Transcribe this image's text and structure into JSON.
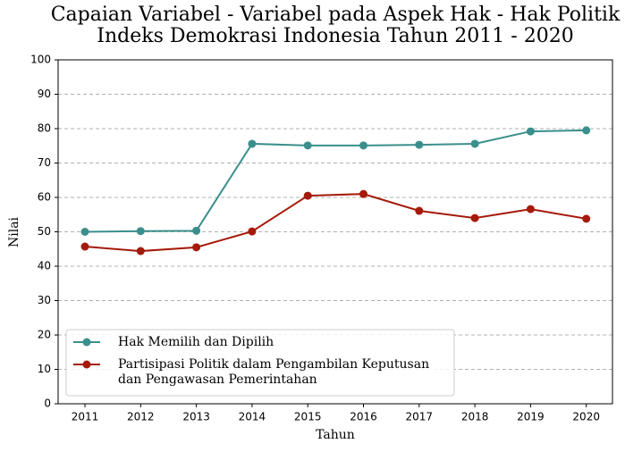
{
  "chart_data": {
    "type": "line",
    "title": "Capaian Variabel - Variabel pada Aspek Hak - Hak Politik\nIndeks Demokrasi Indonesia Tahun 2011 - 2020",
    "x_label": "Tahun",
    "y_label": "Nilai",
    "categories": [
      "2011",
      "2012",
      "2013",
      "2014",
      "2015",
      "2016",
      "2017",
      "2018",
      "2019",
      "2020"
    ],
    "series": [
      {
        "name": "Hak Memilih dan Dipilih",
        "color": "#3a8f8c",
        "values": [
          50.0,
          50.2,
          50.3,
          75.6,
          75.1,
          75.1,
          75.3,
          75.6,
          79.2,
          79.5
        ]
      },
      {
        "name": "Partisipasi Politik dalam Pengambilan Keputusan\ndan Pengawasan Pemerintahan",
        "color": "#a51a0a",
        "values": [
          45.7,
          44.4,
          45.5,
          50.1,
          60.5,
          61.0,
          56.1,
          54.0,
          56.6,
          53.8
        ]
      }
    ],
    "ylim": [
      0,
      100
    ],
    "yticks": [
      0,
      10,
      20,
      30,
      40,
      50,
      60,
      70,
      80,
      90,
      100
    ],
    "grid": true,
    "legend": "lower left"
  }
}
